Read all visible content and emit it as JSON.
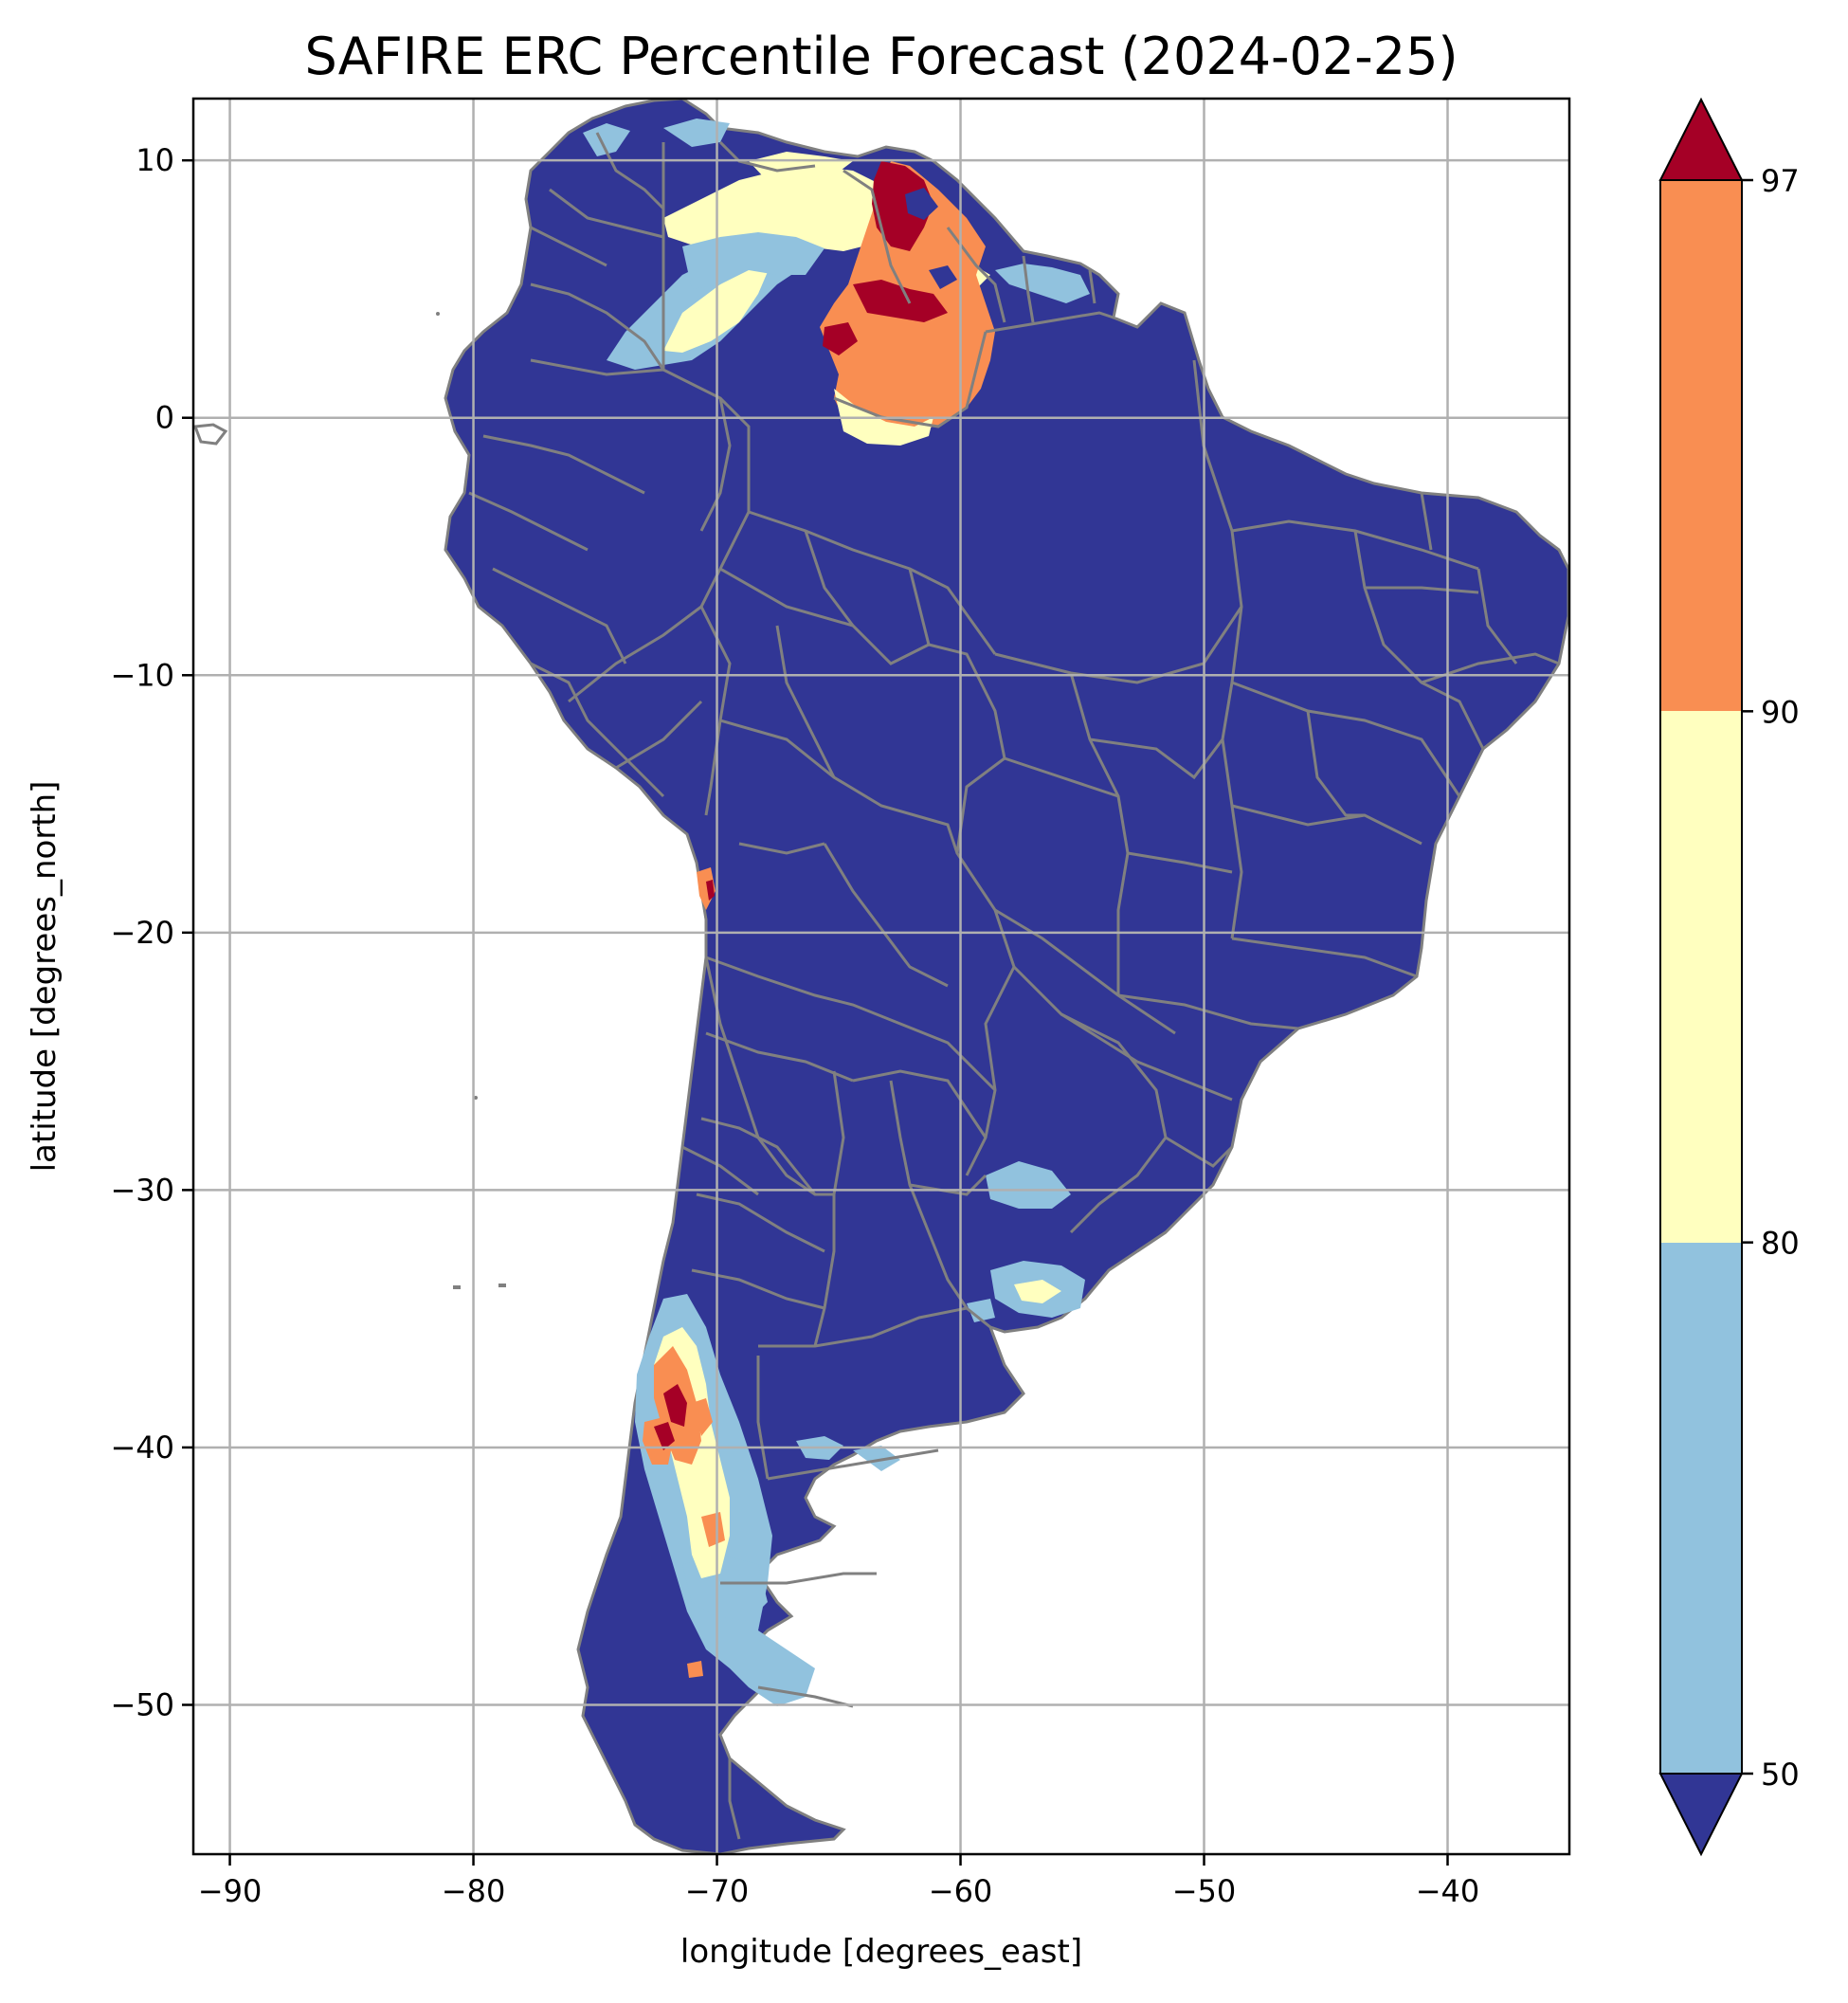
{
  "title": "SAFIRE ERC Percentile Forecast (2024-02-25)",
  "xlabel": "longitude [degrees_east]",
  "ylabel": "latitude [degrees_north]",
  "colors": {
    "below50": "#313695",
    "p50_80": "#91c2de",
    "p80_90": "#ffffbf",
    "p90_97": "#f98e52",
    "above97": "#a50026",
    "border": "#808080",
    "grid": "#b0b0b0"
  },
  "chart_data": {
    "type": "heatmap",
    "xlim": [
      -91.5,
      -35
    ],
    "ylim": [
      -55.8,
      12.4
    ],
    "grid": true,
    "x_ticks": [
      -90,
      -80,
      -70,
      -60,
      -50,
      -40
    ],
    "y_ticks": [
      10,
      0,
      -10,
      -20,
      -30,
      -40,
      -50
    ],
    "x_tick_labels": [
      "−90",
      "−80",
      "−70",
      "−60",
      "−50",
      "−40"
    ],
    "y_tick_labels": [
      "10",
      "0",
      "−10",
      "−20",
      "−30",
      "−40",
      "−50"
    ],
    "colorbar": {
      "ticks": [
        "50",
        "80",
        "90",
        "97"
      ],
      "levels": [
        50,
        80,
        90,
        97
      ],
      "extend": "both"
    }
  }
}
